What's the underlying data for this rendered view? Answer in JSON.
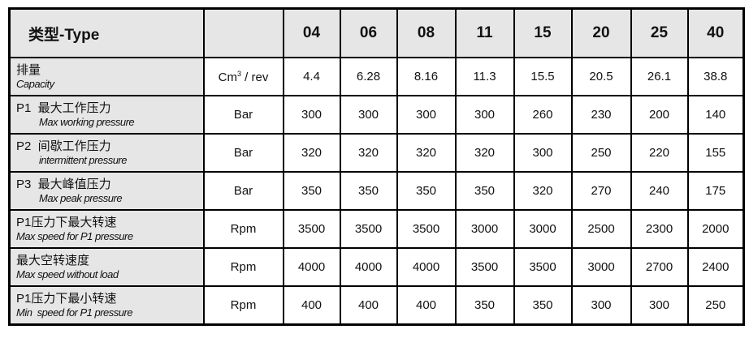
{
  "header": {
    "title": "类型-Type",
    "unit": "",
    "types": [
      "04",
      "06",
      "08",
      "11",
      "15",
      "20",
      "25",
      "40"
    ]
  },
  "rows": [
    {
      "zh": "排量",
      "en": "Capacity",
      "unit": "Cm",
      "unit_sup": "3",
      "unit_suffix": " / rev",
      "values": [
        "4.4",
        "6.28",
        "8.16",
        "11.3",
        "15.5",
        "20.5",
        "26.1",
        "38.8"
      ]
    },
    {
      "zh": "P1  最大工作压力",
      "en": "Max working pressure",
      "unit": "Bar",
      "values": [
        "300",
        "300",
        "300",
        "300",
        "260",
        "230",
        "200",
        "140"
      ]
    },
    {
      "zh": "P2  间歇工作压力",
      "en": "intermittent pressure",
      "unit": "Bar",
      "values": [
        "320",
        "320",
        "320",
        "320",
        "300",
        "250",
        "220",
        "155"
      ]
    },
    {
      "zh": "P3  最大峰值压力",
      "en": "Max peak pressure",
      "unit": "Bar",
      "values": [
        "350",
        "350",
        "350",
        "350",
        "320",
        "270",
        "240",
        "175"
      ]
    },
    {
      "zh": "P1压力下最大转速",
      "en": "Max speed for P1 pressure",
      "unit": "Rpm",
      "values": [
        "3500",
        "3500",
        "3500",
        "3000",
        "3000",
        "2500",
        "2300",
        "2000"
      ]
    },
    {
      "zh": "最大空转速度",
      "en": "Max speed without load",
      "unit": "Rpm",
      "values": [
        "4000",
        "4000",
        "4000",
        "3500",
        "3500",
        "3000",
        "2700",
        "2400"
      ]
    },
    {
      "zh": "P1压力下最小转速",
      "en": "Min  speed for P1 pressure",
      "unit": "Rpm",
      "values": [
        "400",
        "400",
        "400",
        "350",
        "350",
        "300",
        "300",
        "250"
      ]
    }
  ],
  "colors": {
    "label_bg": "#e6e6e6",
    "border": "#000000"
  }
}
